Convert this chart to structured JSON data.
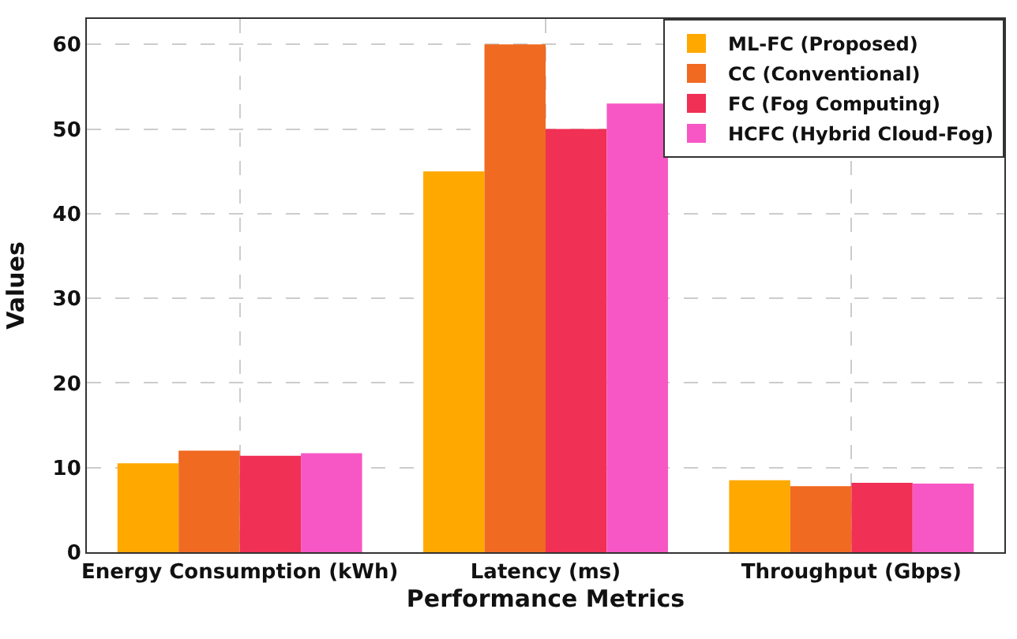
{
  "chart_data": {
    "type": "bar",
    "xlabel": "Performance Metrics",
    "ylabel": "Values",
    "categories": [
      "Energy Consumption (kWh)",
      "Latency (ms)",
      "Throughput (Gbps)"
    ],
    "series": [
      {
        "name": "ML-FC (Proposed)",
        "color": "#ffa800",
        "values": [
          10.5,
          45,
          8.5
        ]
      },
      {
        "name": "CC (Conventional)",
        "color": "#f06a22",
        "values": [
          12,
          60,
          7.8
        ]
      },
      {
        "name": "FC (Fog Computing)",
        "color": "#f03054",
        "values": [
          11.4,
          50,
          8.2
        ]
      },
      {
        "name": "HCFC (Hybrid Cloud-Fog)",
        "color": "#f757c4",
        "values": [
          11.7,
          53,
          8.1
        ]
      }
    ],
    "ylim": [
      0,
      63
    ],
    "yticks": [
      0,
      10,
      20,
      30,
      40,
      50,
      60
    ],
    "grid": true,
    "legend": "top right"
  }
}
